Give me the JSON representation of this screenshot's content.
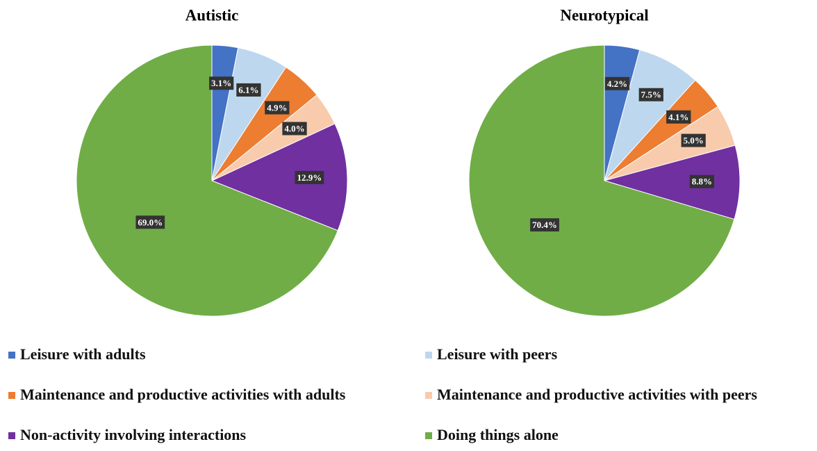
{
  "chart_data": [
    {
      "type": "pie",
      "title": "Autistic",
      "values": [
        3.1,
        6.1,
        4.9,
        4.0,
        12.9,
        69.0
      ],
      "value_labels": [
        "3.1%",
        "6.1%",
        "4.9%",
        "4.0%",
        "12.9%",
        "69.0%"
      ]
    },
    {
      "type": "pie",
      "title": "Neurotypical",
      "values": [
        4.2,
        7.5,
        4.1,
        5.0,
        8.8,
        70.4
      ],
      "value_labels": [
        "4.2%",
        "7.5%",
        "4.1%",
        "5.0%",
        "8.8%",
        "70.4%"
      ]
    }
  ],
  "legend": [
    {
      "name": "Leisure with adults",
      "color": "#4472c4"
    },
    {
      "name": "Leisure with peers",
      "color": "#bdd7ee"
    },
    {
      "name": "Maintenance and productive activities with adults",
      "color": "#ed7d31"
    },
    {
      "name": "Maintenance and productive activities with peers",
      "color": "#f8cbad"
    },
    {
      "name": "Non-activity involving interactions",
      "color": "#7030a0"
    },
    {
      "name": "Doing things alone",
      "color": "#70ad47"
    }
  ]
}
